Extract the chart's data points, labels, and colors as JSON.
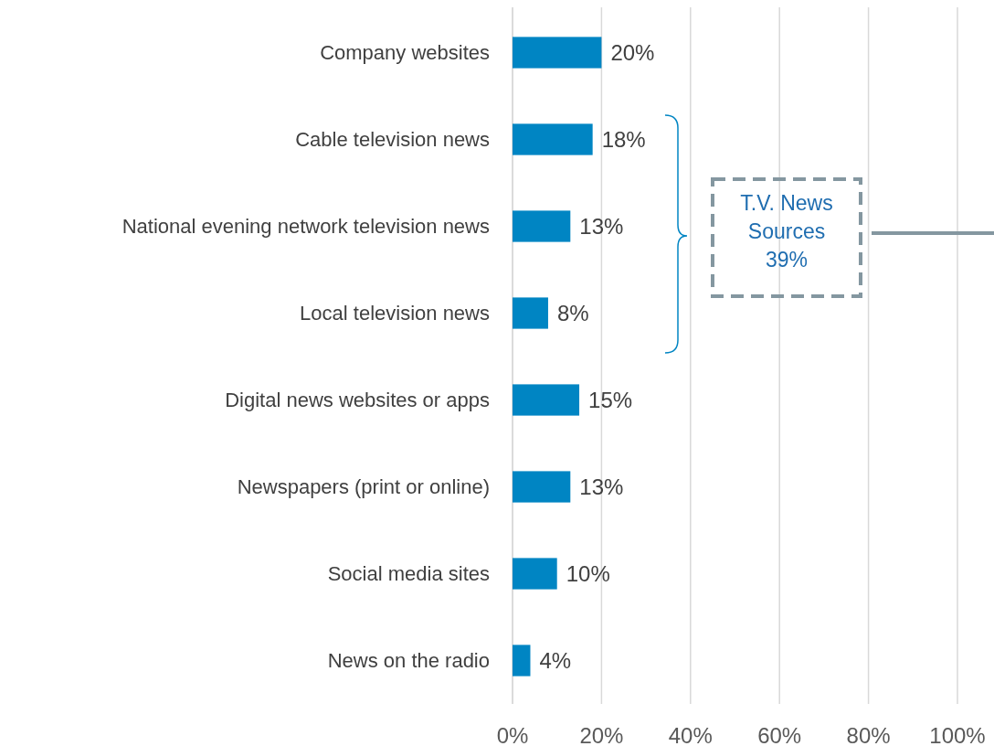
{
  "chart_data": {
    "type": "bar",
    "orientation": "horizontal",
    "categories": [
      "Company websites",
      "Cable television news",
      "National evening network television news",
      "Local television news",
      "Digital news websites or apps",
      "Newspapers (print or online)",
      "Social media sites",
      "News on the radio"
    ],
    "values": [
      20,
      18,
      13,
      8,
      15,
      13,
      10,
      4
    ],
    "value_labels": [
      "20%",
      "18%",
      "13%",
      "8%",
      "15%",
      "13%",
      "10%",
      "4%"
    ],
    "color": "#0085c3",
    "xlim": [
      0,
      100
    ],
    "xticks": [
      {
        "value": 0,
        "label": "0%"
      },
      {
        "value": 20,
        "label": "20%"
      },
      {
        "value": 40,
        "label": "40%"
      },
      {
        "value": 60,
        "label": "60%"
      },
      {
        "value": 80,
        "label": "80%"
      },
      {
        "value": 100,
        "label": "100%"
      }
    ],
    "grid": "x",
    "annotations": [
      "T.V. News\nSources\n39%"
    ]
  }
}
